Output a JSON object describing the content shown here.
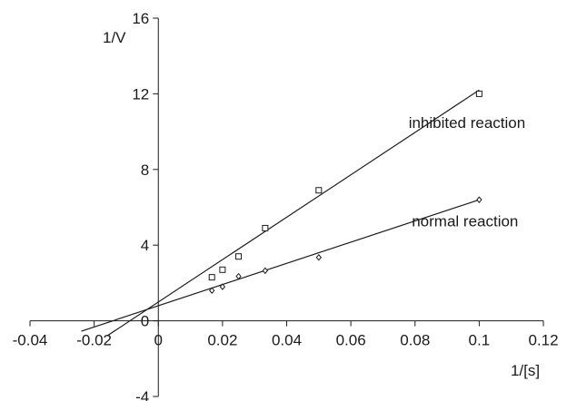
{
  "chart_data": {
    "type": "scatter",
    "xlabel": "1/[s]",
    "ylabel": "1/V",
    "xlim": [
      -0.04,
      0.12
    ],
    "ylim": [
      -4,
      16
    ],
    "x_ticks": [
      -0.04,
      -0.02,
      0,
      0.02,
      0.04,
      0.06,
      0.08,
      0.1,
      0.12
    ],
    "x_tick_labels": [
      "-0.04",
      "-0.02",
      "0",
      "0.02",
      "0.04",
      "0.06",
      "0.08",
      "0.1",
      "0.12"
    ],
    "y_ticks": [
      -4,
      0,
      4,
      8,
      12,
      16
    ],
    "y_tick_labels": [
      "-4",
      "0",
      "4",
      "8",
      "12",
      "16"
    ],
    "grid": false,
    "series": [
      {
        "name": "inhibited reaction",
        "marker": "square",
        "color": "#1a1a1a",
        "points": [
          {
            "x": 0.0167,
            "y": 2.3
          },
          {
            "x": 0.02,
            "y": 2.7
          },
          {
            "x": 0.025,
            "y": 3.4
          },
          {
            "x": 0.0333,
            "y": 4.9
          },
          {
            "x": 0.05,
            "y": 6.9
          },
          {
            "x": 0.1,
            "y": 12.0
          }
        ],
        "fit_line": {
          "x": [
            -0.016,
            0.1
          ],
          "y": [
            -0.8,
            12.2
          ]
        }
      },
      {
        "name": "normal reaction",
        "marker": "diamond",
        "color": "#1a1a1a",
        "points": [
          {
            "x": 0.0167,
            "y": 1.6
          },
          {
            "x": 0.02,
            "y": 1.8
          },
          {
            "x": 0.025,
            "y": 2.35
          },
          {
            "x": 0.0333,
            "y": 2.65
          },
          {
            "x": 0.05,
            "y": 3.35
          },
          {
            "x": 0.1,
            "y": 6.4
          }
        ],
        "fit_line": {
          "x": [
            -0.024,
            0.1
          ],
          "y": [
            -0.55,
            6.4
          ]
        }
      }
    ],
    "annotations": [
      {
        "text": "inhibited reaction",
        "x": 0.078,
        "y": 10.2
      },
      {
        "text": "normal reaction",
        "x": 0.079,
        "y": 5.0
      }
    ]
  }
}
